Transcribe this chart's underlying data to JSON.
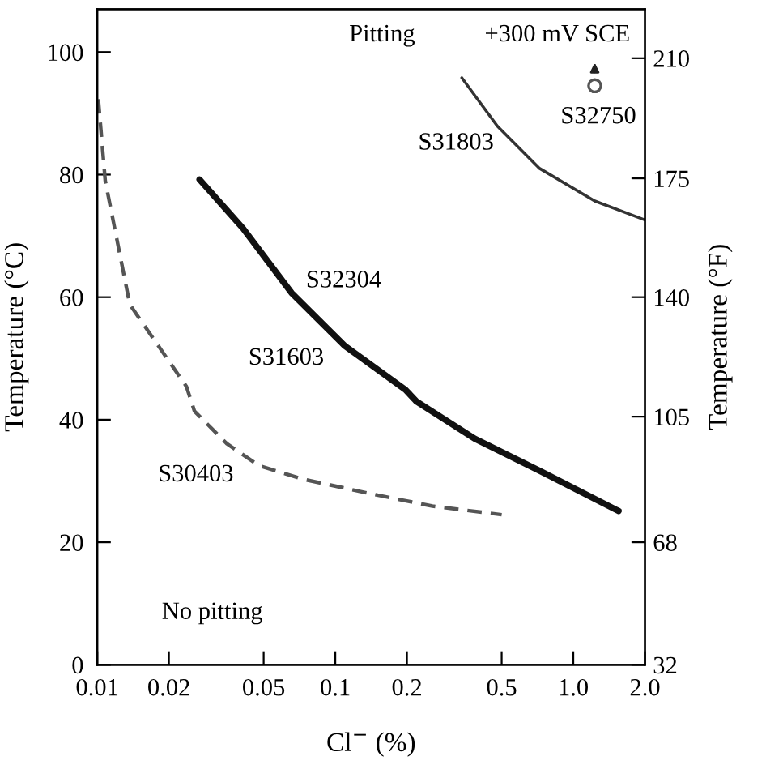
{
  "chart_data": {
    "type": "line",
    "xlabel": "Cl$^{−}$ (%)",
    "ylabel": "Temperature (°C)",
    "y2label": "Temperature (°F)",
    "log": "x",
    "grid": false,
    "legend": false,
    "xlim": [
      0.01,
      2.0
    ],
    "xticks": [
      0.01,
      0.02,
      0.05,
      0.1,
      0.2,
      0.5,
      {
        "value": 1.0,
        "label": "1.0"
      },
      {
        "value": 2.0,
        "label": "2.0"
      }
    ],
    "ylim": [
      0,
      107
    ],
    "yticks": [
      0,
      20,
      40,
      60,
      80,
      100
    ],
    "y2lim": [
      32,
      224.6
    ],
    "y2ticks": [
      32,
      68,
      {
        "value": 104.9,
        "label": "105"
      },
      140,
      {
        "value": 174.9,
        "label": "175"
      },
      {
        "value": 210.2,
        "label": "210"
      }
    ],
    "series": [
      {
        "line_style": "dashed",
        "color": "#555555",
        "x": [
          0.0101,
          0.0108,
          0.0137,
          0.0237,
          0.0256,
          0.035,
          0.0478,
          0.0731,
          0.15,
          0.256,
          0.5
        ],
        "values": [
          92.3,
          79,
          58.8,
          45.4,
          41.4,
          36.1,
          32.5,
          30.3,
          27.7,
          25.9,
          24.5
        ]
      },
      {
        "line_style": "solid",
        "color": "#111111",
        "x": [
          0.0269,
          0.041,
          0.0655,
          0.11,
          0.197,
          0.219,
          0.385,
          0.72,
          1.55
        ],
        "values": [
          79.2,
          71.2,
          60.7,
          52,
          44.9,
          43,
          36.9,
          31.7,
          25.1
        ]
      },
      {
        "line_style": "solid",
        "color": "#333333",
        "x": [
          0.34,
          0.48,
          0.722,
          1.23,
          2.0
        ],
        "values": [
          95.8,
          87.9,
          81,
          75.7,
          72.6
        ]
      },
      {
        "type": "scatter",
        "marker": "circle",
        "color": "#555555",
        "x": [
          1.23
        ],
        "values": [
          94.5
        ]
      }
    ],
    "annotations": [
      "Pitting",
      "+300 mV SCE",
      "S32750",
      "S31803",
      "S32304",
      "S31603",
      "S30403",
      "No pitting"
    ]
  }
}
